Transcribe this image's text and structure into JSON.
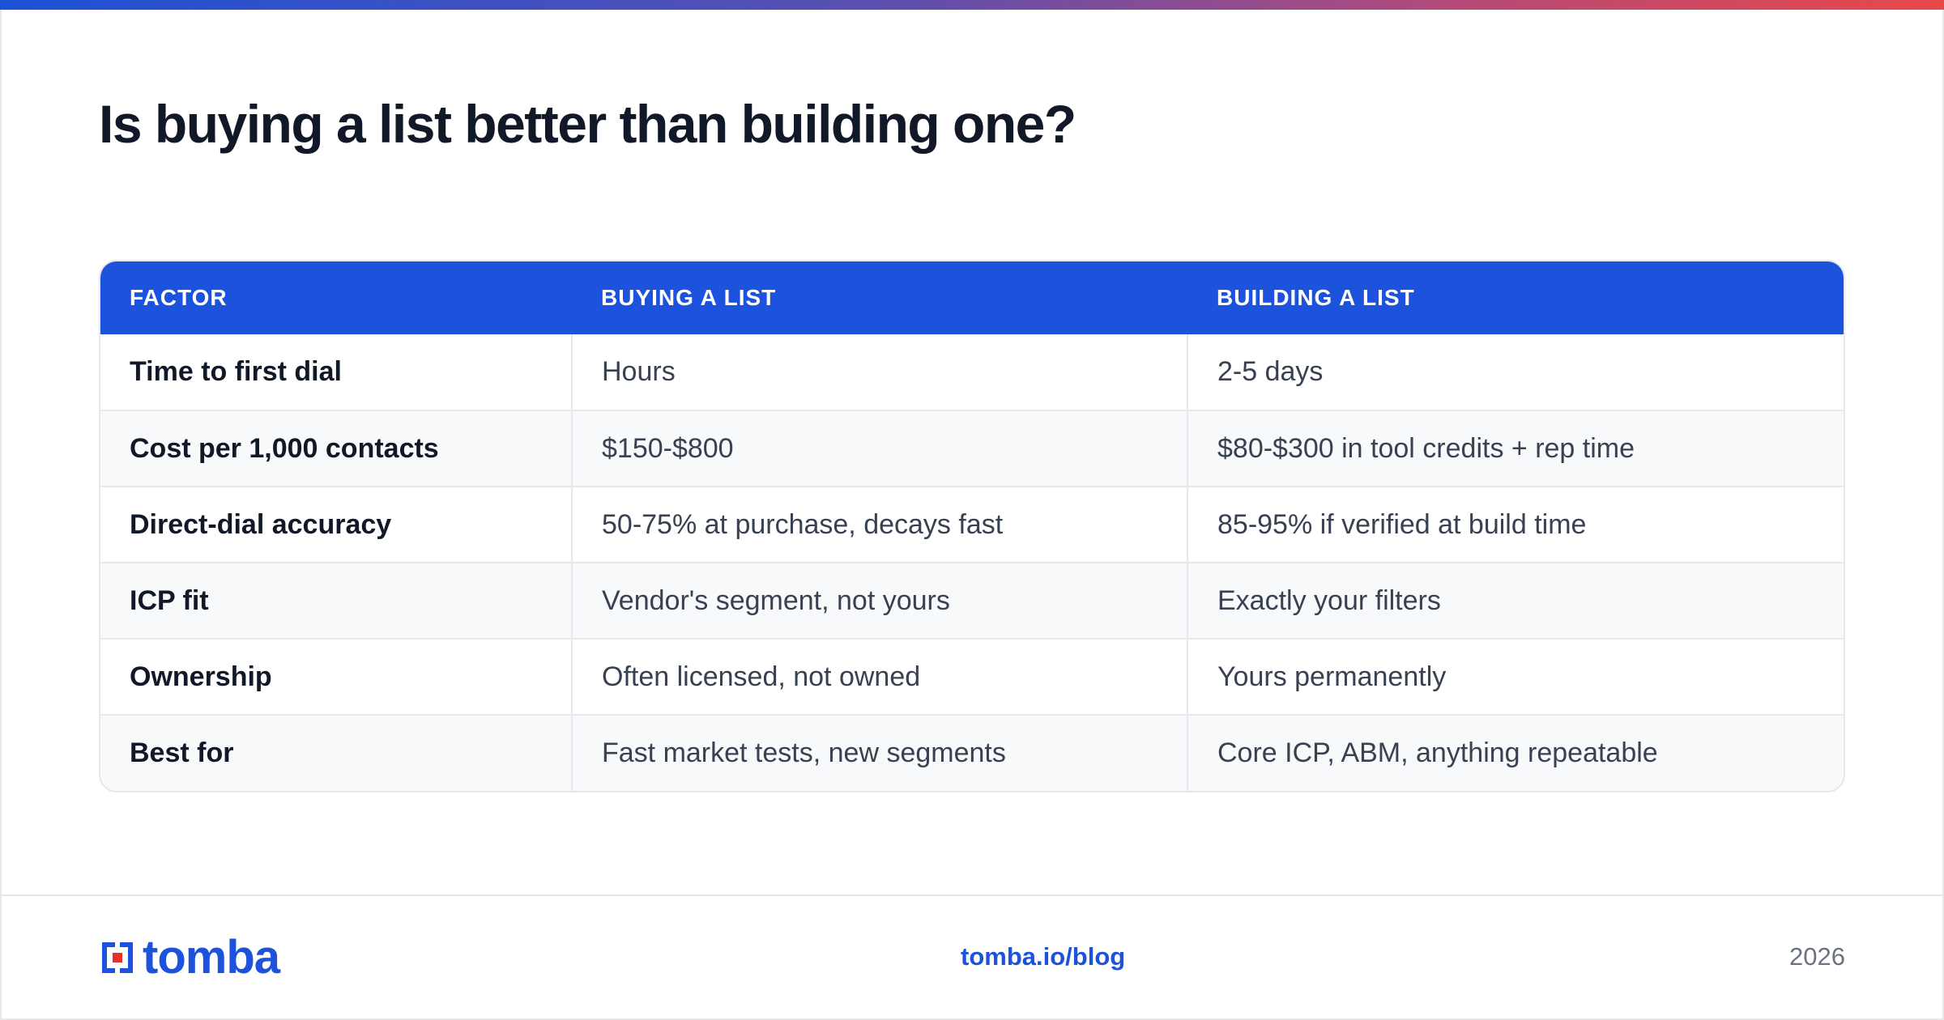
{
  "title": "Is buying a list better than building one?",
  "accent_colors": {
    "brand_blue": "#1c52dc",
    "gradient_start": "#1c52d6",
    "gradient_end": "#e8484a",
    "logo_red": "#e8302a"
  },
  "table": {
    "headers": [
      "FACTOR",
      "BUYING A LIST",
      "BUILDING A LIST"
    ],
    "rows": [
      {
        "factor": "Time to first dial",
        "buying": "Hours",
        "building": "2-5 days"
      },
      {
        "factor": "Cost per 1,000 contacts",
        "buying": "$150-$800",
        "building": "$80-$300 in tool credits + rep time"
      },
      {
        "factor": "Direct-dial accuracy",
        "buying": "50-75% at purchase, decays fast",
        "building": "85-95% if verified at build time"
      },
      {
        "factor": "ICP fit",
        "buying": "Vendor's segment, not yours",
        "building": "Exactly your filters"
      },
      {
        "factor": "Ownership",
        "buying": "Often licensed, not owned",
        "building": "Yours permanently"
      },
      {
        "factor": "Best for",
        "buying": "Fast market tests, new segments",
        "building": "Core ICP, ABM, anything repeatable"
      }
    ]
  },
  "footer": {
    "logo_text": "tomba",
    "logo_icon": "tomba-bracket-logo-icon",
    "link": "tomba.io/blog",
    "year": "2026"
  }
}
